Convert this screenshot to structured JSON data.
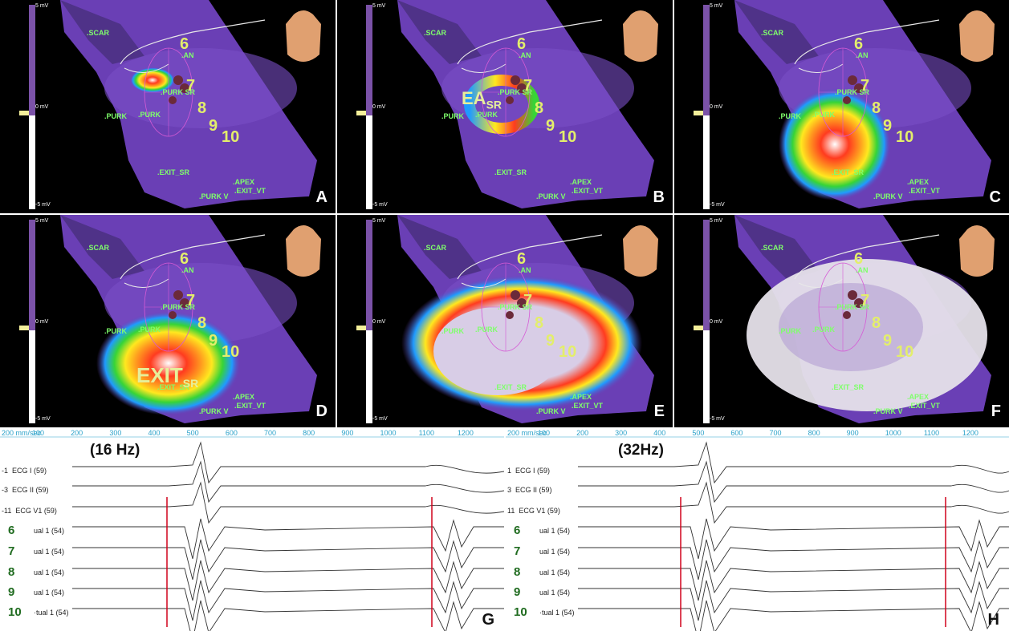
{
  "scale": {
    "top": "5 mV",
    "mid": "0 mV",
    "bottom": "-5 mV"
  },
  "panels": [
    {
      "letter": "A",
      "annotation": ""
    },
    {
      "letter": "B",
      "annotation": "EA",
      "annotation_sub": "SR"
    },
    {
      "letter": "C",
      "annotation": ""
    },
    {
      "letter": "D",
      "annotation": "EXIT",
      "annotation_sub": "SR"
    },
    {
      "letter": "E",
      "annotation": ""
    },
    {
      "letter": "F",
      "annotation": ""
    }
  ],
  "landmarks": {
    "scar": ".SCAR",
    "an": ".AN",
    "purk": ".PURK",
    "purk_sr": ".PURK SR",
    "exit_sr": ".EXIT_SR",
    "apex": ".APEX",
    "exit_vt": ".EXIT_VT",
    "purk_v": ".PURK V"
  },
  "electrode_numbers": [
    "6",
    "7",
    "8",
    "9",
    "10"
  ],
  "ecg_left": {
    "letter": "G",
    "filter": "(16 Hz)",
    "speed": "200 mm/sec",
    "ticks": [
      "100",
      "200",
      "300",
      "400",
      "500",
      "600",
      "700",
      "800",
      "900",
      "1000",
      "1100",
      "1200"
    ],
    "channels": [
      {
        "num": "-1",
        "label": "ECG I (59)"
      },
      {
        "num": "-3",
        "label": "ECG II (59)"
      },
      {
        "num": "-11",
        "label": "ECG V1 (59)"
      },
      {
        "num": "6",
        "label": "ual 1 (54)"
      },
      {
        "num": "7",
        "label": "ual 1 (54)"
      },
      {
        "num": "8",
        "label": "ual 1 (54)"
      },
      {
        "num": "9",
        "label": "ual 1 (54)"
      },
      {
        "num": "10",
        "label": "·tual 1 (54)"
      }
    ]
  },
  "ecg_right": {
    "letter": "H",
    "filter": "(32Hz)",
    "speed": "200 mm/sec",
    "ticks": [
      "100",
      "200",
      "300",
      "400",
      "500",
      "600",
      "700",
      "800",
      "900",
      "1000",
      "1100",
      "1200"
    ],
    "channels": [
      {
        "num": "1",
        "label": "ECG I (59)"
      },
      {
        "num": "3",
        "label": "ECG II (59)"
      },
      {
        "num": "11",
        "label": "ECG V1 (59)"
      },
      {
        "num": "6",
        "label": "ual 1 (54)"
      },
      {
        "num": "7",
        "label": "ual 1 (54)"
      },
      {
        "num": "8",
        "label": "ual 1 (54)"
      },
      {
        "num": "9",
        "label": "ual 1 (54)"
      },
      {
        "num": "10",
        "label": "·tual 1 (54)"
      }
    ]
  },
  "colors": {
    "myocardium": "#6a3fb5",
    "scar_dark": "#3d2a6b",
    "landmark": "#7fff6b",
    "number": "#e3ee6b",
    "marker_line": "#d0021b"
  }
}
